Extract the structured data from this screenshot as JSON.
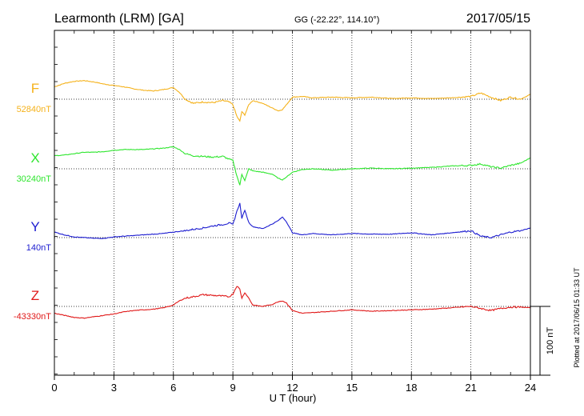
{
  "header": {
    "station": "Learmonth (LRM)  [GA]",
    "coords": "GG (-22.22°, 114.10°)",
    "date": "2017/05/15"
  },
  "footer_note": "Plotted at 2017/06/15 01:33 UT",
  "chart_data": {
    "type": "line",
    "xlabel": "U T (hour)",
    "xlim": [
      0,
      24
    ],
    "xticks": [
      "0",
      "3",
      "6",
      "9",
      "12",
      "15",
      "18",
      "21",
      "24"
    ],
    "grid": true,
    "scale_bar": {
      "label": "100 nT",
      "value_nT": 100
    },
    "series": [
      {
        "name": "F",
        "baseline_label": "52840nT",
        "baseline_nT": 52840,
        "color": "#f5b21b",
        "x": [
          0,
          0.5,
          1,
          1.5,
          2,
          2.5,
          3,
          3.5,
          4,
          4.5,
          5,
          5.5,
          6,
          6.3,
          6.6,
          7,
          7.5,
          8,
          8.5,
          8.8,
          9,
          9.2,
          9.35,
          9.45,
          9.6,
          9.8,
          10,
          10.5,
          11,
          11.3,
          11.5,
          11.7,
          12,
          12.5,
          13,
          14,
          15,
          16,
          17,
          18,
          19,
          20,
          21,
          21.5,
          22,
          22.5,
          23,
          23.5,
          24
        ],
        "y": [
          52858,
          52863,
          52866,
          52867,
          52865,
          52862,
          52860,
          52858,
          52855,
          52853,
          52852,
          52854,
          52857,
          52850,
          52840,
          52834,
          52836,
          52835,
          52838,
          52836,
          52832,
          52815,
          52808,
          52822,
          52817,
          52832,
          52838,
          52834,
          52827,
          52823,
          52825,
          52832,
          52843,
          52844,
          52842,
          52843,
          52842,
          52843,
          52841,
          52842,
          52841,
          52842,
          52844,
          52849,
          52843,
          52838,
          52843,
          52840,
          52847
        ]
      },
      {
        "name": "X",
        "baseline_label": "30240nT",
        "baseline_nT": 30240,
        "color": "#2ee62e",
        "x": [
          0,
          0.5,
          1,
          1.5,
          2,
          2.5,
          3,
          3.5,
          4,
          4.5,
          5,
          5.5,
          6,
          6.3,
          6.6,
          7,
          7.5,
          8,
          8.5,
          8.8,
          9,
          9.2,
          9.35,
          9.45,
          9.6,
          9.8,
          10,
          10.5,
          11,
          11.3,
          11.5,
          11.7,
          12,
          12.5,
          13,
          14,
          15,
          16,
          17,
          18,
          19,
          20,
          21,
          21.5,
          22,
          22.5,
          23,
          23.5,
          24
        ],
        "y": [
          30259,
          30260,
          30262,
          30264,
          30264,
          30265,
          30267,
          30268,
          30268,
          30268,
          30269,
          30270,
          30272,
          30268,
          30262,
          30259,
          30258,
          30257,
          30258,
          30254,
          30252,
          30230,
          30216,
          30232,
          30223,
          30240,
          30237,
          30235,
          30232,
          30226,
          30224,
          30228,
          30235,
          30239,
          30240,
          30238,
          30240,
          30241,
          30240,
          30241,
          30242,
          30244,
          30245,
          30247,
          30243,
          30241,
          30245,
          30248,
          30256
        ]
      },
      {
        "name": "Y",
        "baseline_label": "140nT",
        "baseline_nT": 140,
        "color": "#1c1cd0",
        "x": [
          0,
          0.5,
          1,
          1.5,
          2,
          2.5,
          3,
          3.5,
          4,
          4.5,
          5,
          5.5,
          6,
          6.3,
          6.6,
          7,
          7.5,
          8,
          8.5,
          8.8,
          9,
          9.2,
          9.35,
          9.45,
          9.6,
          9.8,
          10,
          10.5,
          11,
          11.3,
          11.5,
          11.7,
          12,
          12.5,
          13,
          14,
          15,
          16,
          17,
          18,
          19,
          20,
          21,
          21.5,
          22,
          22.5,
          23,
          23.5,
          24
        ],
        "y": [
          148,
          144,
          141,
          140,
          139,
          139,
          141,
          142,
          143,
          144,
          145,
          146,
          148,
          149,
          150,
          152,
          154,
          157,
          159,
          161,
          159,
          178,
          190,
          168,
          180,
          162,
          156,
          153,
          160,
          165,
          170,
          163,
          147,
          144,
          146,
          144,
          146,
          145,
          145,
          147,
          144,
          147,
          150,
          142,
          140,
          144,
          148,
          150,
          154
        ]
      },
      {
        "name": "Z",
        "baseline_label": "-43330nT",
        "baseline_nT": -43330,
        "color": "#e01818",
        "x": [
          0,
          0.5,
          1,
          1.5,
          2,
          2.5,
          3,
          3.5,
          4,
          4.5,
          5,
          5.5,
          6,
          6.3,
          6.6,
          7,
          7.5,
          8,
          8.5,
          8.8,
          9,
          9.2,
          9.35,
          9.45,
          9.6,
          9.8,
          10,
          10.5,
          11,
          11.3,
          11.5,
          11.7,
          12,
          12.5,
          13,
          14,
          15,
          16,
          17,
          18,
          19,
          20,
          21,
          21.5,
          22,
          22.5,
          23,
          23.5,
          24
        ],
        "y": [
          -43340,
          -43343,
          -43346,
          -43347,
          -43345,
          -43343,
          -43341,
          -43338,
          -43336,
          -43335,
          -43334,
          -43332,
          -43328,
          -43322,
          -43318,
          -43316,
          -43313,
          -43314,
          -43315,
          -43316,
          -43312,
          -43300,
          -43305,
          -43318,
          -43310,
          -43318,
          -43328,
          -43330,
          -43327,
          -43323,
          -43322,
          -43325,
          -43336,
          -43340,
          -43339,
          -43337,
          -43335,
          -43337,
          -43336,
          -43335,
          -43334,
          -43332,
          -43330,
          -43333,
          -43336,
          -43333,
          -43331,
          -43331,
          -43332
        ]
      }
    ]
  }
}
